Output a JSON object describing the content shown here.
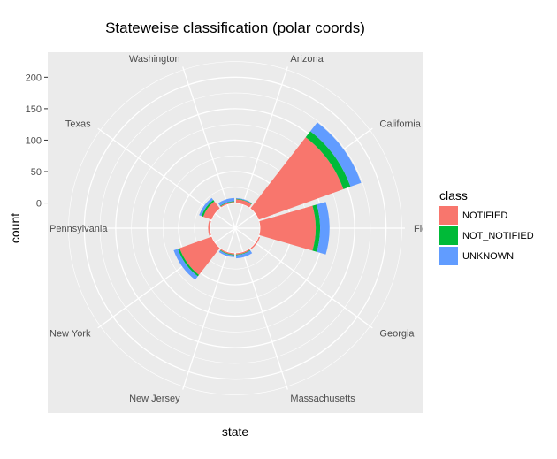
{
  "chart_data": {
    "type": "bar",
    "coord": "polar",
    "title": "Stateweise classification (polar coords)",
    "xlabel": "state",
    "ylabel": "count",
    "categories": [
      "Arizona",
      "California",
      "Florida",
      "Georgia",
      "Massachusetts",
      "New Jersey",
      "New York",
      "Pennsylvania",
      "Texas",
      "Washington"
    ],
    "y_ticks": [
      0,
      50,
      100,
      150,
      200
    ],
    "ylim": [
      -40,
      230
    ],
    "stacked": true,
    "legend_title": "class",
    "legend_position": "right",
    "grid": true,
    "series": [
      {
        "name": "NOTIFIED",
        "color": "#F8766D",
        "values": [
          6,
          143,
          88,
          2,
          2,
          2,
          54,
          3,
          14,
          2
        ]
      },
      {
        "name": "NOT_NOTIFIED",
        "color": "#00BA38",
        "values": [
          1,
          12,
          7,
          0,
          1,
          1,
          3,
          0,
          3,
          1
        ]
      },
      {
        "name": "UNKNOWN",
        "color": "#619CFF",
        "values": [
          1,
          18,
          15,
          0,
          5,
          3,
          7,
          0,
          4,
          5
        ]
      }
    ]
  }
}
